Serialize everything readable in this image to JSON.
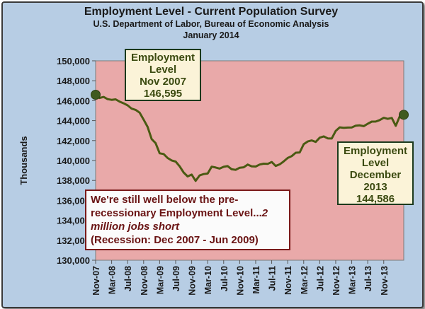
{
  "header": {
    "title": "Employment Level - Current Population Survey",
    "subtitle": "U.S. Department  of Labor, Bureau of Economic Analysis",
    "date": "January 2014"
  },
  "annotations": {
    "start": {
      "line1": "Employment",
      "line2": "Level",
      "line3": "Nov 2007",
      "line4": "146,595"
    },
    "end": {
      "line1": "Employment",
      "line2": "Level",
      "line3": "December",
      "line4": "2013",
      "line5": "144,586"
    },
    "note": {
      "part1": "We're still well below the pre-recessionary Employment Level...",
      "part2": "2 million jobs short",
      "part3": "(Recession: Dec 2007 - Jun 2009)"
    }
  },
  "colors": {
    "plot_background": "#e9a9a9",
    "line": "#4a5a12",
    "marker": "#3f5a1f",
    "frame_background": "#b7cde4"
  },
  "chart_data": {
    "type": "line",
    "title": "Employment Level - Current Population Survey",
    "ylabel": "Thousands",
    "xlabel": "",
    "ylim": [
      130000,
      150000
    ],
    "yticks": [
      130000,
      132000,
      134000,
      136000,
      138000,
      140000,
      142000,
      144000,
      146000,
      148000,
      150000
    ],
    "ytick_labels": [
      "130,000",
      "132,000",
      "134,000",
      "136,000",
      "138,000",
      "140,000",
      "142,000",
      "144,000",
      "146,000",
      "148,000",
      "150,000"
    ],
    "xtick_labels": [
      "Nov-07",
      "Mar-08",
      "Jul-08",
      "Nov-08",
      "Mar-09",
      "Jul-09",
      "Nov-09",
      "Mar-10",
      "Jul-10",
      "Nov-10",
      "Mar-11",
      "Jul-11",
      "Nov-11",
      "Mar-12",
      "Jul-12",
      "Nov-12",
      "Mar-13",
      "Jul-13",
      "Nov-13"
    ],
    "grid": false,
    "series": [
      {
        "values": [
          146595,
          146273,
          146378,
          146156,
          146086,
          146132,
          145908,
          145737,
          145532,
          145203,
          145076,
          144802,
          144100,
          143369,
          142152,
          141748,
          140721,
          140652,
          140250,
          140009,
          139894,
          139421,
          138795,
          138402,
          138590,
          137960,
          138511,
          138638,
          138698,
          139382,
          139301,
          139195,
          139369,
          139438,
          139119,
          139061,
          139276,
          139321,
          139596,
          139418,
          139400,
          139596,
          139678,
          139660,
          139854,
          139457,
          139615,
          139906,
          140252,
          140441,
          140783,
          140807,
          141637,
          141911,
          142016,
          141866,
          142288,
          142415,
          142221,
          142204,
          142974,
          143328,
          143277,
          143305,
          143322,
          143492,
          143524,
          143448,
          143690,
          143898,
          143911,
          144057,
          144285,
          144179,
          144270,
          143485,
          144443,
          144586
        ]
      }
    ],
    "markers": [
      {
        "index": 0,
        "value": 146595
      },
      {
        "index": 77,
        "value": 144586
      }
    ]
  }
}
